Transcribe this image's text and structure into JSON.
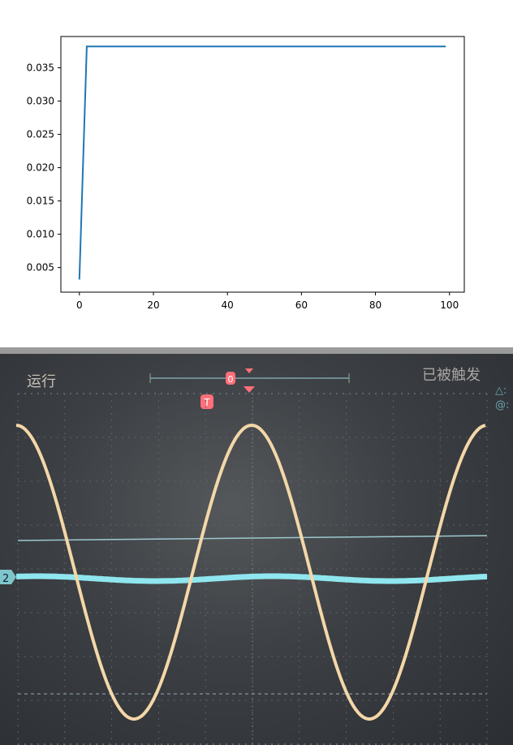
{
  "chart_data": {
    "type": "line",
    "title": "",
    "xlabel": "",
    "ylabel": "",
    "xlim": [
      -5,
      104
    ],
    "ylim": [
      0.0013,
      0.0397
    ],
    "xticks": [
      0,
      20,
      40,
      60,
      80,
      100
    ],
    "yticks": [
      0.005,
      0.01,
      0.015,
      0.02,
      0.025,
      0.03,
      0.035
    ],
    "ytick_labels": [
      "0.005",
      "0.010",
      "0.015",
      "0.020",
      "0.025",
      "0.030",
      "0.035"
    ],
    "xtick_labels": [
      "0",
      "20",
      "40",
      "60",
      "80",
      "100"
    ],
    "grid": false,
    "series": [
      {
        "x": [
          0,
          2,
          99
        ],
        "y": [
          0.0032,
          0.0382,
          0.0382
        ],
        "color": "#1f77b4"
      }
    ]
  },
  "oscilloscope": {
    "status_left": "运行",
    "status_right": "已被触发",
    "trigger_marker": "T",
    "position_marker": "0",
    "channel_marker": "2",
    "side_labels": [
      "△:",
      "@:"
    ],
    "colors": {
      "ch1": "#f4d7a8",
      "ch2": "#8fe6ef",
      "trigger": "#ff6f7a"
    }
  }
}
